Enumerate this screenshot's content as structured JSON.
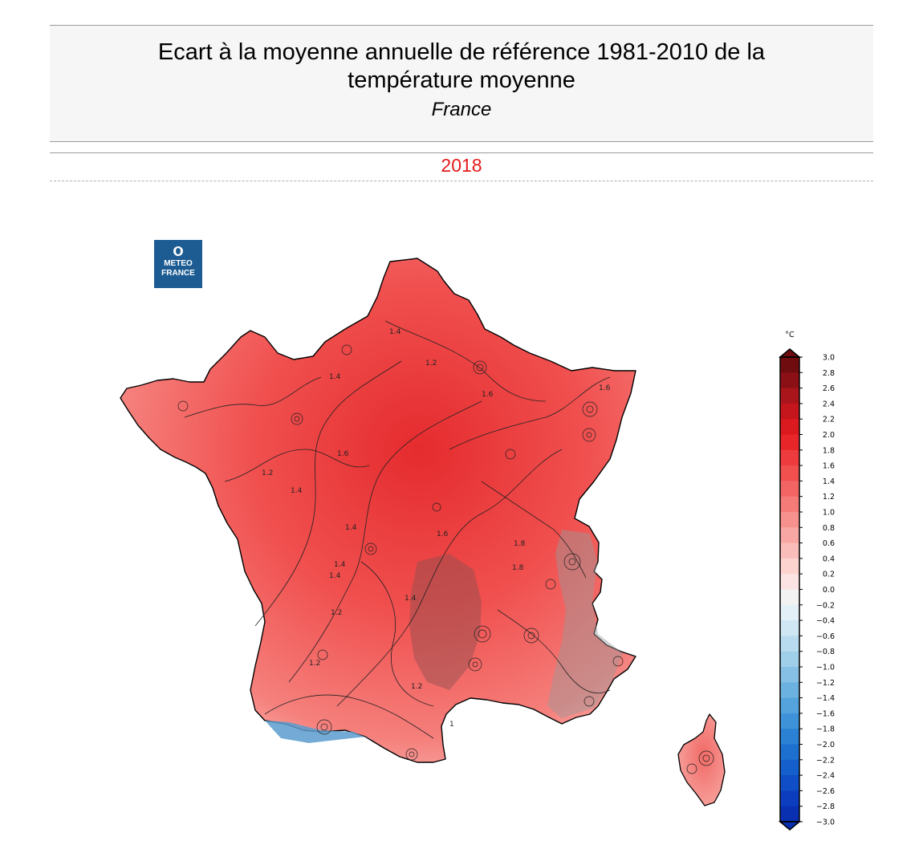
{
  "header": {
    "title_line1": "Ecart à la moyenne annuelle de référence 1981-2010 de la",
    "title_line2": "température moyenne",
    "region": "France",
    "year": "2018"
  },
  "logo": {
    "line1": "METEO",
    "line2": "FRANCE"
  },
  "colorbar": {
    "unit": "°C",
    "min": -3.0,
    "max": 3.0,
    "ticks": [
      "3.0",
      "2.8",
      "2.6",
      "2.4",
      "2.2",
      "2.0",
      "1.8",
      "1.6",
      "1.4",
      "1.2",
      "1.0",
      "0.8",
      "0.6",
      "0.4",
      "0.2",
      "0.0",
      "−0.2",
      "−0.4",
      "−0.6",
      "−0.8",
      "−1.0",
      "−1.2",
      "−1.4",
      "−1.6",
      "−1.8",
      "−2.0",
      "−2.2",
      "−2.4",
      "−2.6",
      "−2.8",
      "−3.0"
    ],
    "colors": [
      "#6e0c10",
      "#8b1016",
      "#a9151b",
      "#c4161c",
      "#da1a1f",
      "#e8262a",
      "#ee3b3e",
      "#f1504f",
      "#f36564",
      "#f57b79",
      "#f7918e",
      "#f9a7a4",
      "#fbbdba",
      "#fdd3d0",
      "#fbe4e3",
      "#f2f2f2",
      "#e3f0f7",
      "#cfe6f3",
      "#b8dbef",
      "#a0cfea",
      "#86c1e5",
      "#6cb2e0",
      "#54a3dc",
      "#3e93d8",
      "#2b82d4",
      "#1e70d0",
      "#155fcc",
      "#104ec7",
      "#0c3dbf",
      "#0930b0"
    ]
  },
  "map": {
    "contour_labels": [
      "1.4",
      "1.2",
      "1.4",
      "1.6",
      "1.2",
      "1.6",
      "1.4",
      "1.4",
      "1.6",
      "1.8",
      "1.8",
      "1.4",
      "1.2",
      "1.4",
      "1.2",
      "1.2",
      "1",
      "1.6",
      "1.4"
    ]
  }
}
